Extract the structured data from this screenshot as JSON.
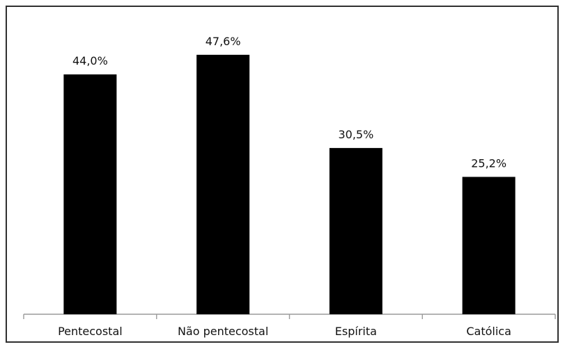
{
  "chart_data": {
    "type": "bar",
    "categories": [
      "Pentecostal",
      "Não pentecostal",
      "Espírita",
      "Católica"
    ],
    "values": [
      44.0,
      47.6,
      30.5,
      25.2
    ],
    "data_labels": [
      "44,0%",
      "47,6%",
      "30,5%",
      "25,2%"
    ],
    "title": "",
    "xlabel": "",
    "ylabel": "",
    "ylim": [
      0,
      50
    ],
    "grid": false,
    "legend": "none",
    "bar_color": "#000000",
    "axis_color": "#9a9a9a"
  }
}
